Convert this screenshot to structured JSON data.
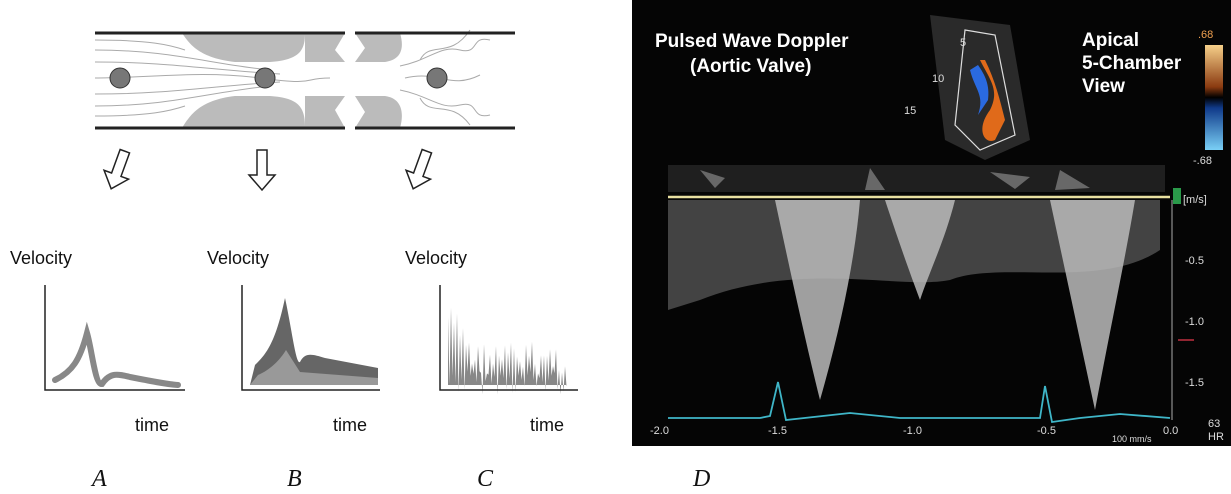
{
  "panels": [
    {
      "letter": "A",
      "y_label": "Velocity",
      "x_label": "time"
    },
    {
      "letter": "B",
      "y_label": "Velocity",
      "x_label": "time"
    },
    {
      "letter": "C",
      "y_label": "Velocity",
      "x_label": "time"
    }
  ],
  "doppler": {
    "letter": "D",
    "title": [
      "Pulsed Wave Doppler",
      "(Aortic Valve)"
    ],
    "view": [
      "Apical",
      "5-Chamber",
      "View"
    ],
    "color_scale": [
      ".68",
      "-.68"
    ],
    "unit": "[m/s]",
    "velocity_ticks": [
      "-0.5",
      "-1.0",
      "-1.5"
    ],
    "time_ticks": [
      "-2.0",
      "-1.5",
      "-1.0",
      "-0.5",
      "0.0"
    ],
    "heart_rate": [
      "63",
      "HR"
    ],
    "sweep": "100 mm/s",
    "depth_ticks": [
      "5",
      "10",
      "15"
    ]
  }
}
